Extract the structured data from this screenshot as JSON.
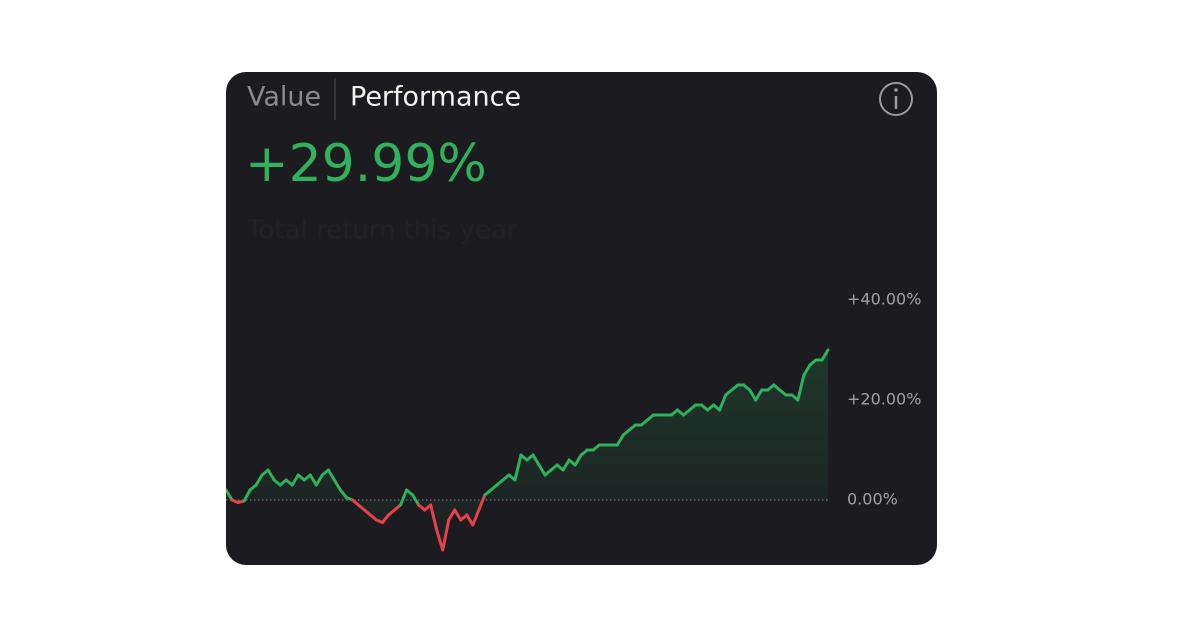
{
  "tabs": [
    "Value",
    "Performance"
  ],
  "headline": "+29.99%",
  "subtitle": "Total return this year",
  "chart_data": {
    "type": "line",
    "series": [
      {
        "color": "#2fb15d",
        "negative_color": "#e8414e",
        "values": [
          2,
          0,
          -0.5,
          -0.2,
          2,
          3,
          5,
          6,
          4,
          3,
          4,
          3,
          5,
          4,
          5,
          3,
          5,
          6,
          4,
          2,
          0.5,
          0,
          -1,
          -2,
          -3,
          -4,
          -4.5,
          -3,
          -2,
          -1,
          2,
          1,
          -1,
          -2,
          -1,
          -6,
          -10,
          -4,
          -2,
          -4,
          -3,
          -5,
          -2,
          1,
          2,
          3,
          4,
          5,
          4,
          9,
          8,
          9,
          7,
          5,
          6,
          7,
          6,
          8,
          7,
          9,
          10,
          10,
          11,
          11,
          11,
          11,
          13,
          14,
          15,
          15,
          16,
          17,
          17,
          17,
          17,
          18,
          17,
          18,
          19,
          19,
          18,
          19,
          18,
          21,
          22,
          23,
          23,
          22,
          20,
          22,
          22,
          23,
          22,
          21,
          21,
          20,
          25,
          27,
          28,
          28,
          29.99
        ]
      }
    ],
    "ylim": [
      -13,
      40
    ],
    "yticks": [
      {
        "value": 0,
        "label": "0.00%"
      },
      {
        "value": 20,
        "label": "+20.00%"
      },
      {
        "value": 40,
        "label": "+40.00%"
      }
    ]
  }
}
